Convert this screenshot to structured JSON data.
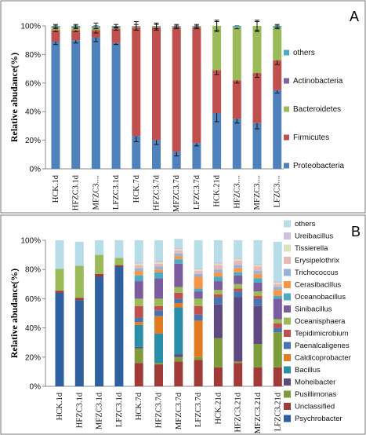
{
  "chart_data": [
    {
      "type": "bar",
      "stacked": true,
      "panel_label": "A",
      "ylabel": "Relative abudance(%)",
      "yticks": [
        "0%",
        "20%",
        "40%",
        "60%",
        "80%",
        "100%"
      ],
      "ylim": [
        0,
        100
      ],
      "categories": [
        "HCK.1d",
        "HFZC3.1d",
        "MFZC3....",
        "LFZC3.1d",
        "HCK.7d",
        "HFZC3.7d",
        "MFZC3.7d",
        "LFZC3.7d",
        "HCK.21d",
        "HFZC3....",
        "MFZC3....",
        "LFZC3...."
      ],
      "legend_position": "right",
      "series": [
        {
          "name": "Proteobacteria",
          "color": "#4f81bd",
          "values": [
            89,
            90,
            92,
            88,
            23,
            20,
            12,
            18,
            39,
            35,
            32,
            55
          ],
          "errors": [
            2,
            2,
            3,
            1,
            4,
            3,
            3,
            2,
            6,
            3,
            4,
            2
          ]
        },
        {
          "name": "Firmicutes",
          "color": "#c0504d",
          "values": [
            8,
            7,
            5,
            10,
            76,
            79,
            87,
            81,
            30,
            27,
            35,
            21
          ],
          "errors": [
            1,
            1,
            2,
            1,
            2,
            2,
            1,
            1,
            3,
            2,
            3,
            3
          ]
        },
        {
          "name": "Bacteroidetes",
          "color": "#9bbb59",
          "values": [
            2,
            2,
            2,
            1,
            0.5,
            0.5,
            0.5,
            0.5,
            31,
            37,
            33,
            23
          ],
          "errors": [
            1,
            1,
            1,
            0.5,
            0,
            0,
            0,
            0,
            3,
            1,
            3,
            1
          ]
        },
        {
          "name": "Actinobacteria",
          "color": "#8064a2",
          "values": [
            0.5,
            0.5,
            0.5,
            0.5,
            0.3,
            0.3,
            0.3,
            0.3,
            0,
            0,
            0,
            0
          ],
          "errors": [
            0,
            0,
            0,
            0,
            0,
            0,
            0,
            0,
            0,
            0,
            0,
            0
          ]
        },
        {
          "name": "others",
          "color": "#4bacc6",
          "values": [
            0.5,
            0.5,
            0.5,
            0.5,
            0.2,
            0.2,
            0.2,
            0.2,
            0,
            1,
            0,
            1
          ],
          "errors": [
            1,
            1,
            2,
            1,
            3,
            2,
            1,
            1,
            4,
            0,
            4,
            1
          ]
        }
      ]
    },
    {
      "type": "bar",
      "stacked": true,
      "panel_label": "B",
      "ylabel": "Relative abudance(%)",
      "yticks": [
        "0%",
        "20%",
        "40%",
        "60%",
        "80%",
        "100%"
      ],
      "ylim": [
        0,
        100
      ],
      "categories": [
        "HCK.1d",
        "HFZC3.1d",
        "MFZC3.1d",
        "LFZC3.1d",
        "HCK.7d",
        "HFZC3.7d",
        "MFZC3.7d",
        "LFZC3.7d",
        "HCK.21d",
        "HFZC3.21d",
        "MFZC3.21d",
        "LFZC3.21d"
      ],
      "legend_position": "right",
      "series": [
        {
          "name": "Psychrobacter",
          "color": "#2e5f9e",
          "values": [
            64,
            59,
            75,
            82,
            0,
            0,
            0,
            0,
            0,
            0,
            0,
            0
          ]
        },
        {
          "name": "Unclassified",
          "color": "#a13b38",
          "values": [
            1.5,
            1.5,
            2,
            1,
            16,
            15,
            17,
            18,
            13,
            16,
            13,
            13
          ]
        },
        {
          "name": "Pusillimonas",
          "color": "#7d9c3c",
          "values": [
            0,
            0,
            0,
            0,
            10,
            1,
            3,
            2,
            20,
            1,
            16,
            24
          ]
        },
        {
          "name": "Moheibacter",
          "color": "#5e4a80",
          "values": [
            0,
            0,
            0,
            0,
            1,
            0,
            2,
            0,
            23,
            44,
            26,
            0
          ]
        },
        {
          "name": "Bacillus",
          "color": "#2b8ea8",
          "values": [
            0,
            0,
            0,
            0,
            15,
            20,
            32,
            0,
            0,
            0,
            0,
            0
          ]
        },
        {
          "name": "Caldicoprobacter",
          "color": "#e07b22",
          "values": [
            0,
            0,
            0,
            0,
            2,
            12,
            3,
            25,
            0,
            0,
            0,
            0
          ]
        },
        {
          "name": "Paenalcaligenes",
          "color": "#4a74b0",
          "values": [
            0,
            0,
            0,
            0,
            3,
            4,
            3,
            4,
            5,
            4,
            5,
            3
          ]
        },
        {
          "name": "Tepidimicrobium",
          "color": "#c0504d",
          "values": [
            0,
            0,
            0,
            0,
            8,
            3,
            4,
            6,
            2,
            2,
            2,
            3
          ]
        },
        {
          "name": "Oceanisphaera",
          "color": "#9bbb59",
          "values": [
            15,
            22,
            13,
            5,
            5,
            5,
            4,
            5,
            3,
            3,
            3,
            3
          ]
        },
        {
          "name": "Sinibacillus",
          "color": "#7b5c9f",
          "values": [
            0,
            0,
            0,
            0,
            12,
            14,
            16,
            5,
            6,
            6,
            6,
            14
          ]
        },
        {
          "name": "Oceanobacillus",
          "color": "#4bacc6",
          "values": [
            0,
            0,
            0,
            0,
            4,
            4,
            3,
            2,
            3,
            2,
            3,
            2
          ]
        },
        {
          "name": "Cerasibacillus",
          "color": "#f79646",
          "values": [
            0,
            0,
            0,
            0,
            3,
            2,
            2,
            8,
            3,
            3,
            3,
            4
          ]
        },
        {
          "name": "Trichococcus",
          "color": "#95b3d7",
          "values": [
            0,
            0,
            0,
            0,
            2,
            2,
            2,
            2,
            2,
            2,
            2,
            2
          ]
        },
        {
          "name": "Erysipelothrix",
          "color": "#e6b9b8",
          "values": [
            0,
            0,
            0,
            0,
            2,
            2,
            2,
            2,
            3,
            3,
            3,
            2
          ]
        },
        {
          "name": "Tissierella",
          "color": "#d7e4bc",
          "values": [
            0,
            0,
            0,
            0,
            1,
            1,
            1,
            1,
            1,
            1,
            1,
            1
          ]
        },
        {
          "name": "Ureibacillus",
          "color": "#ccc1da",
          "values": [
            0,
            0,
            0,
            0,
            1,
            1,
            1,
            1,
            1,
            1,
            1,
            1
          ]
        },
        {
          "name": "others",
          "color": "#b7dee8",
          "values": [
            19.5,
            16.5,
            10,
            12,
            15,
            14,
            6,
            19,
            15,
            12,
            16,
            27
          ]
        }
      ]
    }
  ]
}
